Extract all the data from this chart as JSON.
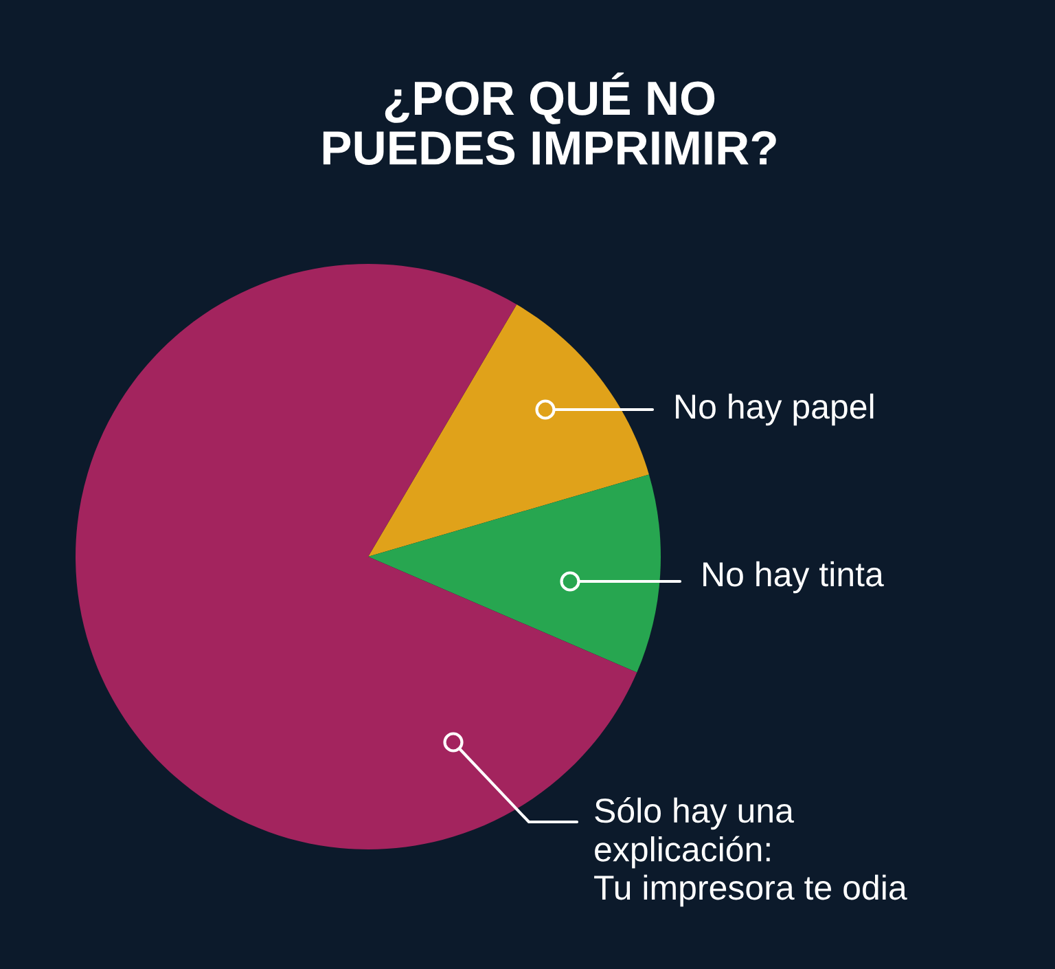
{
  "chart_data": {
    "type": "pie",
    "title": "¿POR QUÉ NO\nPUEDES IMPRIMIR?",
    "categories": [
      "No hay papel",
      "No hay tinta",
      "Sólo hay una\nexplicación:\nTu impresora te odia"
    ],
    "values": [
      12,
      11,
      77
    ],
    "colors": [
      "#e0a21a",
      "#27a650",
      "#a3245e"
    ]
  }
}
